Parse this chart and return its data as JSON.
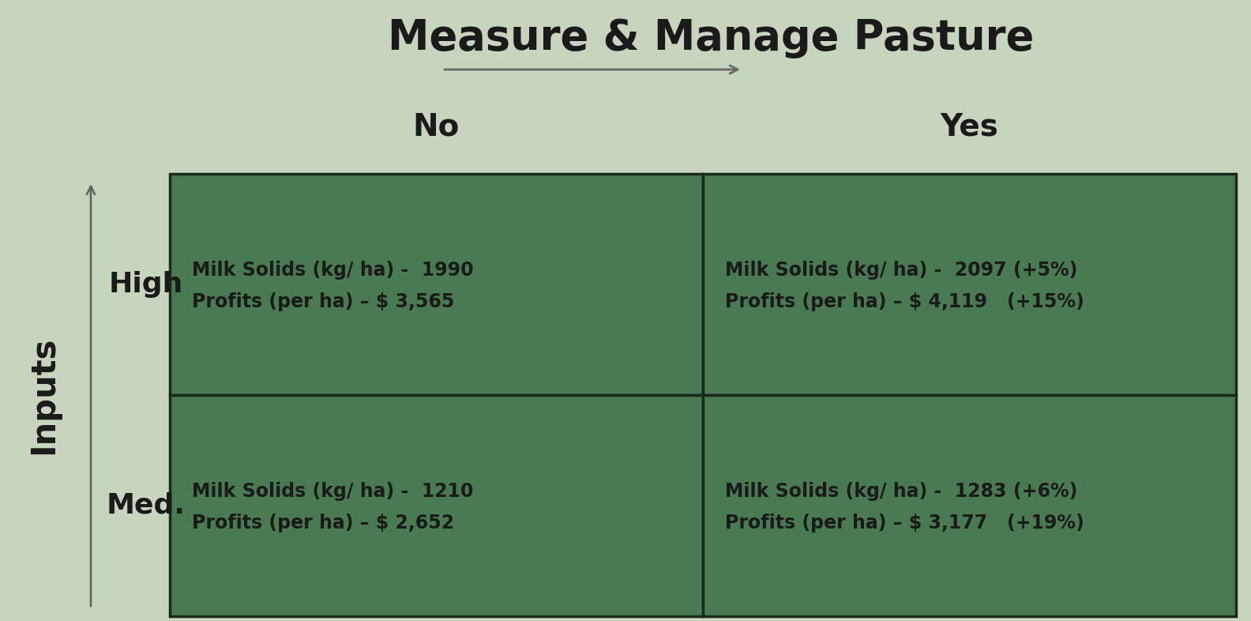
{
  "title": "Measure & Manage Pasture",
  "title_fontsize": 38,
  "background_color": "#c8d5be",
  "cell_color": "#4a7a52",
  "cell_border_color": "#1a2a1a",
  "text_color": "#1a1a1a",
  "white_text": "#ffffff",
  "col_headers": [
    "No",
    "Yes"
  ],
  "col_header_fontsize": 28,
  "row_headers": [
    "High",
    "Med."
  ],
  "row_header_fontsize": 26,
  "inputs_label": "Inputs",
  "inputs_fontsize": 30,
  "arrow_color": "#666666",
  "cell_texts_no_col": [
    {
      "line1": "Milk Solids (kg/ ha) -  1990",
      "line2": "Profits (per ha) – $ 3,565"
    },
    {
      "line1": "Milk Solids (kg/ ha) -  1210",
      "line2": "Profits (per ha) – $ 2,652"
    }
  ],
  "cell_texts_yes_col": [
    {
      "line1_base": "Milk Solids (kg/ ha) -  2097 ",
      "line1_bold": "(+5%)",
      "line2_base": "Profits (per ha) – $ 4,119   ",
      "line2_bold": "(+15%)"
    },
    {
      "line1_base": "Milk Solids (kg/ ha) -  1283 ",
      "line1_bold": "(+6%)",
      "line2_base": "Profits (per ha) – $ 3,177   ",
      "line2_bold": "(+19%)"
    }
  ],
  "cell_fontsize": 17,
  "highlight_fontsize": 17
}
